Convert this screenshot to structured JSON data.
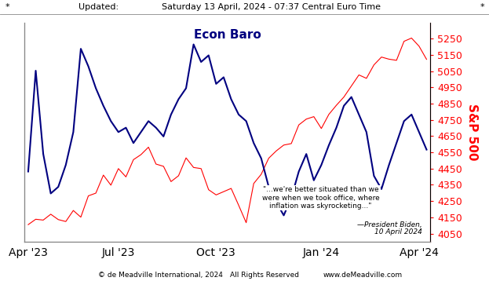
{
  "header": {
    "left_mark": "*",
    "label": "Updated:",
    "timestamp": "Saturday 13 April, 2024 - 07:37 Central Euro Time",
    "right_mark": "*"
  },
  "chart_data": {
    "type": "line",
    "categories": [
      "Apr '23",
      null,
      null,
      null,
      null,
      null,
      null,
      null,
      null,
      null,
      null,
      null,
      "Jul '23",
      null,
      null,
      null,
      null,
      null,
      null,
      null,
      null,
      null,
      null,
      null,
      null,
      "Oct '23",
      null,
      null,
      null,
      null,
      null,
      null,
      null,
      null,
      null,
      null,
      null,
      null,
      null,
      "Jan '24",
      null,
      null,
      null,
      null,
      null,
      null,
      null,
      null,
      null,
      null,
      null,
      null,
      "Apr '24",
      null
    ],
    "series": [
      {
        "name": "Econ Baro",
        "color": "#000080",
        "values": [
          32,
          78,
          40,
          22,
          25,
          35,
          50,
          88,
          80,
          70,
          62,
          55,
          50,
          52,
          45,
          50,
          55,
          52,
          48,
          58,
          65,
          70,
          90,
          82,
          85,
          72,
          75,
          65,
          58,
          55,
          45,
          38,
          25,
          18,
          12,
          20,
          32,
          40,
          28,
          35,
          44,
          52,
          62,
          66,
          58,
          50,
          30,
          24,
          35,
          45,
          55,
          58,
          50,
          42
        ]
      },
      {
        "name": "S&P 500",
        "color": "#ff0000",
        "axis": "y2",
        "values": [
          4105,
          4138,
          4133,
          4169,
          4136,
          4124,
          4192,
          4151,
          4282,
          4299,
          4410,
          4348,
          4450,
          4399,
          4505,
          4536,
          4582,
          4478,
          4464,
          4370,
          4406,
          4516,
          4457,
          4450,
          4320,
          4288,
          4308,
          4328,
          4224,
          4117,
          4358,
          4415,
          4514,
          4559,
          4595,
          4604,
          4719,
          4755,
          4770,
          4697,
          4784,
          4840,
          4891,
          4959,
          5027,
          5006,
          5089,
          5137,
          5124,
          5117,
          5234,
          5254,
          5204,
          5123
        ]
      }
    ],
    "ylim": [
      0,
      100
    ],
    "yticks": [],
    "y2lim": [
      4000,
      5350
    ],
    "y2ticks": [
      4050,
      4150,
      4250,
      4350,
      4450,
      4550,
      4650,
      4750,
      4850,
      4950,
      5050,
      5150,
      5250
    ],
    "grid": false,
    "annotations": {
      "quote": [
        "\"...we're better situated than we",
        "were when we took office, where",
        "inflation was skyrocketing...\""
      ],
      "attribution": [
        "—President Biden,",
        "10 April 2024"
      ]
    }
  },
  "footer": {
    "left": "© de Meadville International, 2024",
    "center": "All Rights Reserved",
    "right": "www.deMeadville.com"
  }
}
